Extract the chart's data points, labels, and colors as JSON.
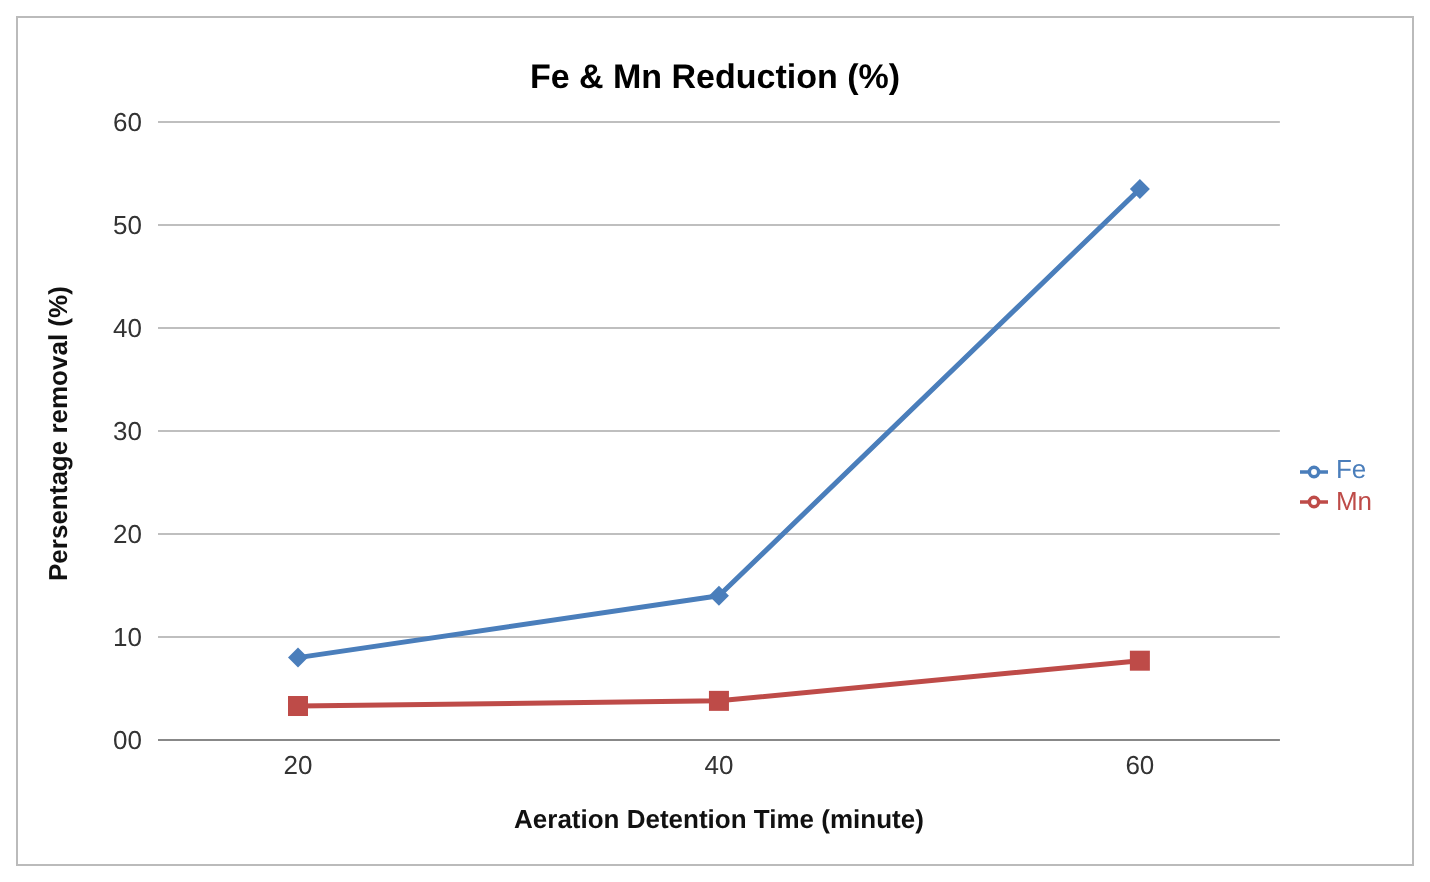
{
  "chart_data": {
    "type": "line",
    "title": "Fe & Mn Reduction (%)",
    "xlabel": "Aeration Detention Time (minute)",
    "ylabel": "Persentage removal (%)",
    "categories": [
      "20",
      "40",
      "60"
    ],
    "series": [
      {
        "name": "Fe",
        "color": "#4a7ebb",
        "values": [
          8,
          14,
          53.5
        ],
        "marker": "diamond"
      },
      {
        "name": "Mn",
        "color": "#be4b48",
        "values": [
          3.3,
          3.8,
          7.7
        ],
        "marker": "square"
      }
    ],
    "ylim": [
      0,
      60
    ],
    "yticks": [
      {
        "value": 0,
        "label": "00"
      },
      10,
      20,
      30,
      40,
      50,
      60
    ],
    "grid": "y",
    "legend": "right"
  }
}
